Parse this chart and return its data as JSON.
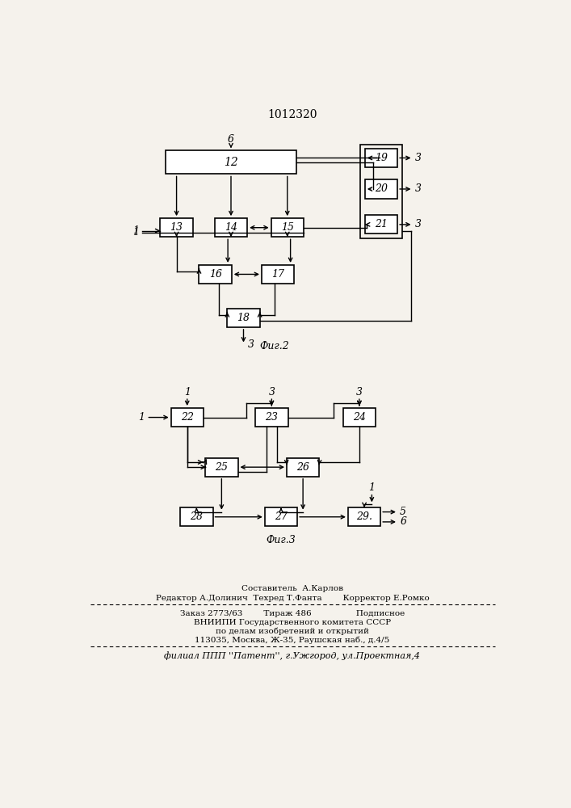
{
  "title": "1012320",
  "fig2_label": "Фиг.2",
  "fig3_label": "Фиг.3",
  "footer_lines": [
    "Составитель  А.Карлов",
    "Редактор А.Долинич  Техред Т.Фанта        Корректор Е.Ромко",
    "Заказ 2773/63        Тираж 486                 Подписное",
    "ВНИИПИ Государственного комитета СССР",
    "по делам изобретений и открытий",
    "113035, Москва, Ж-35, Раушская наб., д.4/5",
    "филиал ППП ''Патент'', г.Ужгород, ул.Проектная,4"
  ],
  "bg_color": "#f5f2ec"
}
